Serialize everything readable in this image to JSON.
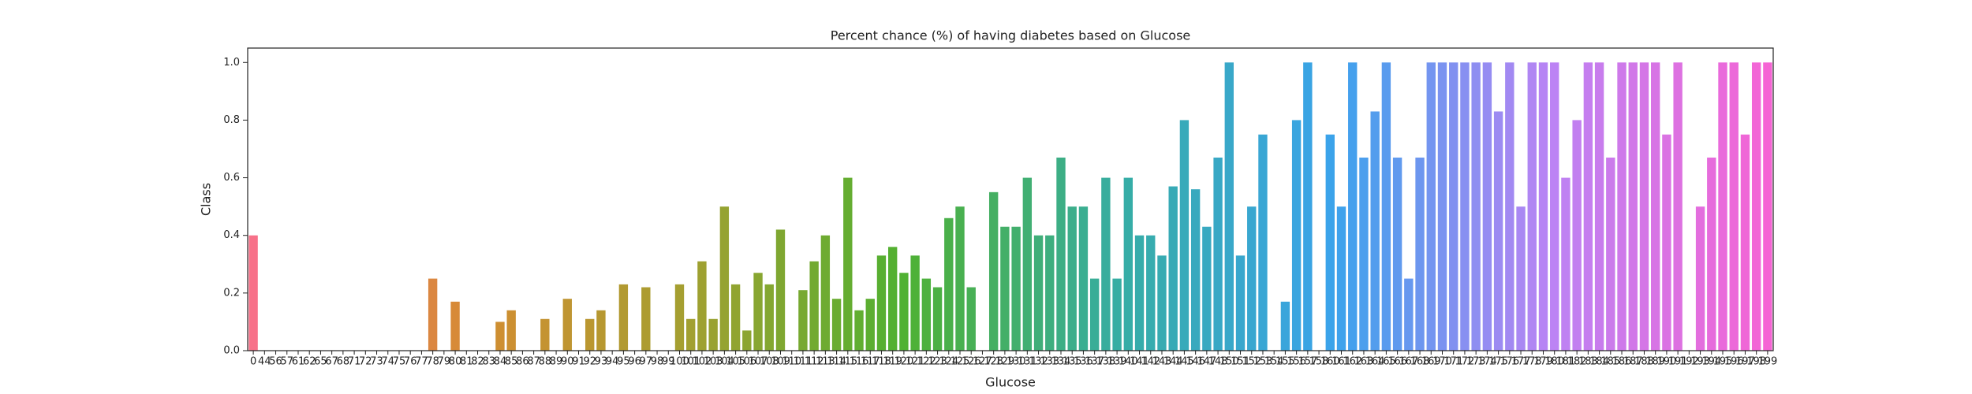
{
  "chart_data": {
    "type": "bar",
    "title": "Percent chance (%) of having diabetes based on Glucose",
    "x_label": "Glucose",
    "y_label": "Class",
    "categories": [
      0,
      44,
      56,
      57,
      61,
      62,
      65,
      67,
      68,
      71,
      72,
      73,
      74,
      75,
      76,
      77,
      78,
      79,
      80,
      81,
      82,
      83,
      84,
      85,
      86,
      87,
      88,
      89,
      90,
      91,
      92,
      93,
      94,
      95,
      96,
      97,
      98,
      99,
      100,
      101,
      102,
      103,
      104,
      105,
      106,
      107,
      108,
      109,
      110,
      111,
      112,
      113,
      114,
      115,
      116,
      117,
      118,
      119,
      120,
      121,
      122,
      123,
      124,
      125,
      126,
      127,
      128,
      129,
      130,
      131,
      132,
      133,
      134,
      135,
      136,
      137,
      138,
      139,
      140,
      141,
      142,
      143,
      144,
      145,
      146,
      147,
      148,
      150,
      151,
      152,
      153,
      154,
      155,
      156,
      157,
      158,
      160,
      161,
      162,
      163,
      164,
      165,
      166,
      167,
      168,
      169,
      170,
      171,
      172,
      173,
      174,
      175,
      176,
      177,
      178,
      179,
      180,
      181,
      182,
      183,
      184,
      185,
      186,
      187,
      188,
      189,
      190,
      191,
      192,
      193,
      194,
      195,
      196,
      197,
      198,
      199
    ],
    "values": [
      0.4,
      0,
      0,
      0,
      0,
      0,
      0,
      0,
      0,
      0,
      0,
      0,
      0,
      0,
      0,
      0,
      0.25,
      0,
      0.17,
      0,
      0,
      0,
      0.1,
      0.14,
      0,
      0,
      0.11,
      0,
      0.18,
      0,
      0.11,
      0.14,
      0,
      0.23,
      0,
      0.22,
      0,
      0,
      0.23,
      0.11,
      0.31,
      0.11,
      0.5,
      0.23,
      0.07,
      0.27,
      0.23,
      0.42,
      0,
      0.21,
      0.31,
      0.4,
      0.18,
      0.6,
      0.14,
      0.18,
      0.33,
      0.36,
      0.27,
      0.33,
      0.25,
      0.22,
      0.46,
      0.5,
      0.22,
      0,
      0.55,
      0.43,
      0.43,
      0.6,
      0.4,
      0.4,
      0.67,
      0.5,
      0.5,
      0.25,
      0.6,
      0.25,
      0.6,
      0.4,
      0.4,
      0.33,
      0.57,
      0.8,
      0.56,
      0.43,
      0.67,
      1,
      0.33,
      0.5,
      0.75,
      0,
      0.17,
      0.8,
      1,
      0,
      0.75,
      0.5,
      1,
      0.67,
      0.83,
      1,
      0.67,
      0.25,
      0.67,
      1,
      1,
      1,
      1,
      1,
      1,
      0.83,
      1,
      0.5,
      1,
      1,
      1,
      0.6,
      0.8,
      1,
      1,
      0.67,
      1,
      1,
      1,
      1,
      0.75,
      1,
      0,
      0.5,
      0.67,
      1,
      1,
      0.75,
      1,
      1
    ],
    "palette": [
      "#f77189",
      "#d58c32",
      "#a4a031",
      "#50b131",
      "#36ada4",
      "#3ba3ec",
      "#bb83f4",
      "#f564d4"
    ],
    "ylim": [
      0,
      1.05
    ],
    "yticks": [
      {
        "value": 0,
        "label": "0.0"
      },
      0.2,
      0.4,
      0.6,
      0.8,
      {
        "value": 1,
        "label": "1.0"
      }
    ],
    "grid": false
  }
}
